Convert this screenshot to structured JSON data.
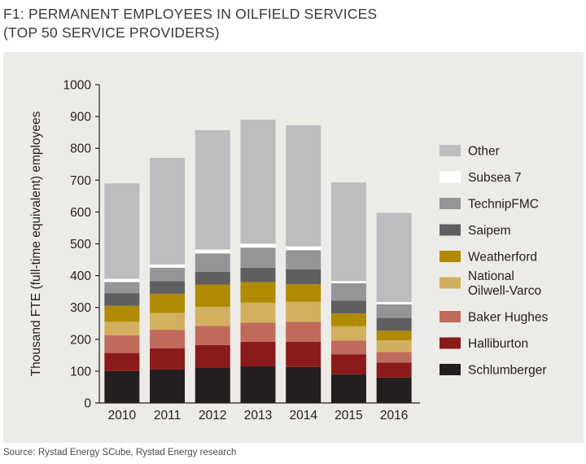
{
  "title": {
    "line1": "F1:  PERMANENT EMPLOYEES IN OILFIELD SERVICES",
    "line2": "(TOP 50 SERVICE PROVIDERS)"
  },
  "source": "Source: Rystad Energy SCube, Rystad Energy research",
  "chart_data": {
    "type": "bar",
    "stacked": true,
    "categories": [
      "2010",
      "2011",
      "2012",
      "2013",
      "2014",
      "2015",
      "2016"
    ],
    "ylabel": "Thousand FTE (full-time equivalent) employees",
    "ylim": [
      0,
      1000
    ],
    "yticks": [
      0,
      100,
      200,
      300,
      400,
      500,
      600,
      700,
      800,
      900,
      1000
    ],
    "grid": false,
    "legend_position": "right",
    "series": [
      {
        "name": "Schlumberger",
        "color": "#231f20",
        "values": [
          100,
          105,
          110,
          115,
          113,
          90,
          80
        ]
      },
      {
        "name": "Halliburton",
        "color": "#8b1a1a",
        "values": [
          57,
          67,
          72,
          77,
          79,
          63,
          47
        ]
      },
      {
        "name": "Baker Hughes",
        "color": "#c06a5c",
        "values": [
          56,
          58,
          60,
          60,
          63,
          43,
          33
        ]
      },
      {
        "name": "National\nOilwell-Varco",
        "color": "#d2b060",
        "values": [
          42,
          53,
          60,
          63,
          63,
          45,
          37
        ]
      },
      {
        "name": "Weatherford",
        "color": "#b08a00",
        "values": [
          50,
          60,
          70,
          65,
          55,
          40,
          30
        ]
      },
      {
        "name": "Saipem",
        "color": "#5f5f61",
        "values": [
          40,
          40,
          40,
          45,
          47,
          40,
          40
        ]
      },
      {
        "name": "TechnipFMC",
        "color": "#959597",
        "values": [
          35,
          42,
          58,
          63,
          60,
          55,
          43
        ]
      },
      {
        "name": "Subsea 7",
        "color": "#ffffff",
        "values": [
          10,
          10,
          12,
          12,
          12,
          7,
          7
        ]
      },
      {
        "name": "Other",
        "color": "#bdbdbf",
        "values": [
          300,
          335,
          375,
          390,
          380,
          310,
          280
        ]
      }
    ]
  }
}
